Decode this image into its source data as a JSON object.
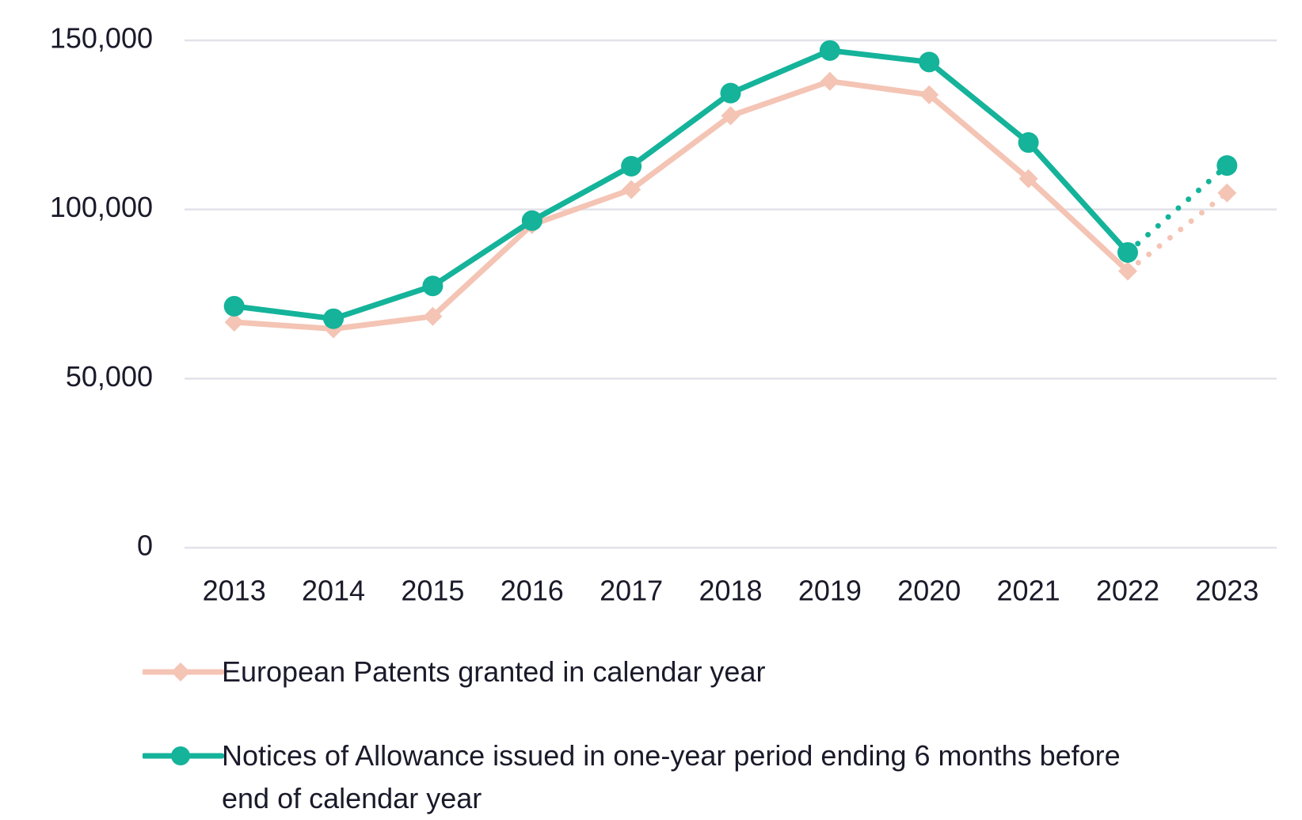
{
  "chart_data": {
    "type": "line",
    "categories": [
      "2013",
      "2014",
      "2015",
      "2016",
      "2017",
      "2018",
      "2019",
      "2020",
      "2021",
      "2022",
      "2023"
    ],
    "series": [
      {
        "name": "European Patents granted in calendar year",
        "color": "#f4c4b4",
        "marker": "diamond",
        "values": [
          66700,
          64700,
          68400,
          95500,
          105900,
          127700,
          137900,
          133900,
          109100,
          81800,
          104900
        ]
      },
      {
        "name": "Notices of Allowance issued in one-year period ending 6 months before end of calendar year",
        "color": "#14b39a",
        "marker": "circle",
        "values": [
          71400,
          67700,
          77400,
          96700,
          112800,
          134400,
          147000,
          143600,
          119800,
          87300,
          113000
        ]
      }
    ],
    "dotted_last_segment": true,
    "ylim": [
      0,
      150000
    ],
    "yticks": [
      0,
      {
        "value": 50000,
        "label": "50,000"
      },
      {
        "value": 100000,
        "label": "100,000"
      },
      {
        "value": 150000,
        "label": "150,000"
      }
    ],
    "grid": true
  }
}
